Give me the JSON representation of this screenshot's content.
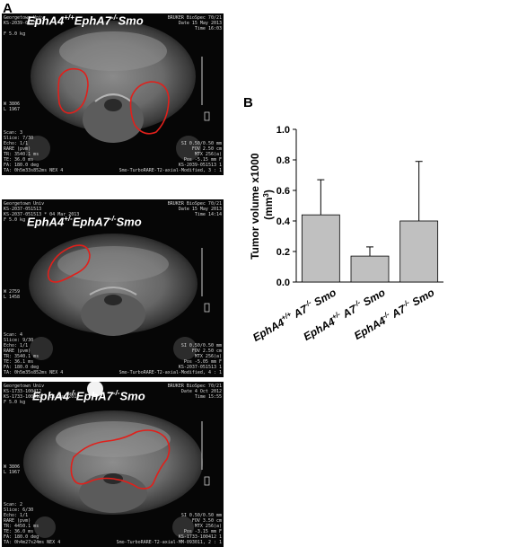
{
  "panel_a_letter": "A",
  "panel_b_letter": "B",
  "images": [
    {
      "label": "EphA4+/+EphA7-/-Smo",
      "label_parts": [
        "EphA4",
        "+/+",
        "EphA7",
        "-/-",
        "Smo"
      ],
      "top_left": "Georgetown Univ\nKS-2039-051513\n\nF 5.0 kg",
      "top_right": "BRUKER BioSpec 70/21\nDate 15 May 2013\nTime 16:03",
      "mid_left": "W 3806\nL 1967",
      "bottom_left": "Scan: 3\nSlice: 7/30\nEcho: 1/1\nRARE (pvm)\nTR: 3540.1 ms\nTE: 36.0 ms\nFA: 180.0 deg\nTA: 0h5m33s852ms NEX 4",
      "bottom_right": "SI 0.50/0.50 mm\nFOV 2.50 cm\nMTX 256(a)\nPos -5.15 mm F\nKS-2039-051513 1\nSmo-TurboRARE-T2-axial-Modified, 3 : 1"
    },
    {
      "label": "EphA4+/-EphA7-/-Smo",
      "label_parts": [
        "EphA4",
        "+/-",
        "EphA7",
        "-/-",
        "Smo"
      ],
      "top_left": "Georgetown Univ\nKS-2037-051513\nKS-2037-051513 * 04 Mar 2013\nF 5.0 kg",
      "top_right": "BRUKER BioSpec 70/21\nDate 15 May 2013\nTime 14:14",
      "mid_left": "W 2759\nL 1458",
      "bottom_left": "Scan: 4\nSlice: 9/30\nEcho: 1/1\nRARE (pvm)\nTR: 3540.1 ms\nTE: 36.1 ms\nFA: 180.0 deg\nTA: 0h5m35s852ms NEX 4",
      "bottom_right": "SI 0.50/0.50 mm\nFOV 2.50 cm\nMTX 256(a)\nPos -5.05 mm F\nKS-2037-051513 1\nSmo-TurboRARE-T2-axial-Modified, 4 : 1"
    },
    {
      "label": "EphA4-/-EphA7-/-Smo",
      "label_parts": [
        "EphA4",
        "-/-",
        "EphA7",
        "-/-",
        "Smo"
      ],
      "top_left": "Georgetown Univ\nKS-1733-100412\nKS-1733-100412 * 18 Aug 2012\nF 5.0 kg",
      "top_right": "BRUKER BioSpec 70/21\nDate 4 Oct 2012\nTime 15:55",
      "mid_left": "W 3806\nL 1967",
      "bottom_left": "Scan: 2\nSlice: 6/30\nEcho: 1/1\nRARE (pvm)\nTR: 4450.1 ms\nTE: 36.0 ms\nFA: 180.0 deg\nTA: 0h4m27s24ms NEX 4",
      "bottom_right": "SI 0.50/0.50 mm\nFOV 3.50 cm\nMTX 256(a)\nPos -3.15 mm F\nKS-1733-100412 1\nSmo-TurboRARE-T2-axial-MM-093011, 2 : 1"
    }
  ],
  "colors": {
    "tumor_outline": "#e0201b",
    "bar_fill": "#c0c0c0"
  },
  "chart_data": {
    "type": "bar",
    "ylabel": "Tumor volume x1000 (mm3)",
    "ylabel_line1": "Tumor volume  x1000",
    "ylabel_line2": "(mm",
    "ylabel_sup": "3",
    "ylabel_line2_end": ")",
    "categories": [
      "EphA4+/+ A7-/- Smo",
      "EphA4+/- A7-/- Smo",
      "EphA4-/- A7-/- Smo"
    ],
    "category_parts": [
      [
        "EphA4",
        "+/+",
        " A7",
        "-/-",
        " Smo"
      ],
      [
        "EphA4",
        "+/-",
        " A7",
        "-/-",
        " Smo"
      ],
      [
        "EphA4",
        "-/-",
        " A7",
        "-/-",
        " Smo"
      ]
    ],
    "values": [
      0.44,
      0.17,
      0.4
    ],
    "error_upper": [
      0.67,
      0.23,
      0.79
    ],
    "ylim": [
      0,
      1.0
    ],
    "yticks": [
      "0.0",
      "0.2",
      "0.4",
      "0.6",
      "0.8",
      "1.0"
    ],
    "ytick_values": [
      0,
      0.2,
      0.4,
      0.6,
      0.8,
      1.0
    ],
    "grid": false
  }
}
